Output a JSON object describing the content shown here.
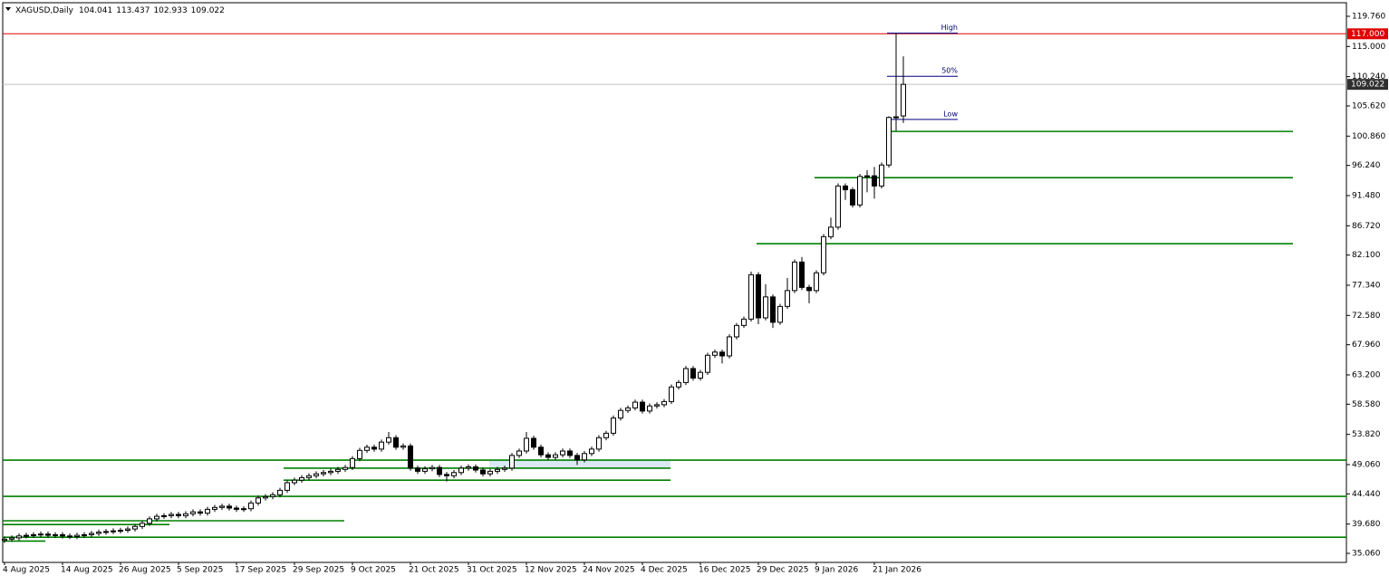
{
  "chart_data": {
    "type": "candlestick",
    "title": "XAGUSD,Daily",
    "categories": [
      "4 Aug 2025",
      null,
      null,
      null,
      null,
      null,
      null,
      null,
      "14 Aug 2025",
      null,
      null,
      null,
      null,
      null,
      null,
      null,
      "26 Aug 2025",
      null,
      null,
      null,
      null,
      null,
      null,
      null,
      "5 Sep 2025",
      null,
      null,
      null,
      null,
      null,
      null,
      null,
      "17 Sep 2025",
      null,
      null,
      null,
      null,
      null,
      null,
      null,
      "29 Sep 2025",
      null,
      null,
      null,
      null,
      null,
      null,
      null,
      "9 Oct 2025",
      null,
      null,
      null,
      null,
      null,
      null,
      null,
      "21 Oct 2025",
      null,
      null,
      null,
      null,
      null,
      null,
      null,
      "31 Oct 2025",
      null,
      null,
      null,
      null,
      null,
      null,
      null,
      "12 Nov 2025",
      null,
      null,
      null,
      null,
      null,
      null,
      null,
      "24 Nov 2025",
      null,
      null,
      null,
      null,
      null,
      null,
      null,
      "4 Dec 2025",
      null,
      null,
      null,
      null,
      null,
      null,
      null,
      "16 Dec 2025",
      null,
      null,
      null,
      null,
      null,
      null,
      null,
      "29 Dec 2025",
      null,
      null,
      null,
      null,
      null,
      null,
      null,
      "9 Jan 2026",
      null,
      null,
      null,
      null,
      null,
      null,
      null,
      "21 Jan 2026",
      null,
      null,
      null,
      null
    ],
    "open": [
      37.1,
      37.3,
      37.5,
      37.8,
      37.9,
      38.0,
      38.1,
      37.9,
      38.0,
      37.8,
      37.7,
      37.9,
      38.0,
      38.2,
      38.4,
      38.5,
      38.6,
      38.7,
      38.9,
      39.3,
      39.8,
      40.5,
      40.9,
      41.0,
      41.2,
      41.0,
      41.3,
      41.6,
      41.4,
      42.0,
      42.3,
      42.5,
      42.2,
      42.0,
      42.1,
      43.0,
      43.8,
      44.0,
      44.3,
      45.0,
      46.2,
      46.6,
      47.0,
      47.3,
      47.6,
      47.8,
      48.0,
      48.3,
      48.6,
      50.0,
      51.3,
      51.8,
      51.5,
      52.6,
      53.3,
      51.8,
      52.0,
      48.5,
      48.0,
      48.4,
      48.6,
      47.5,
      47.3,
      47.8,
      48.5,
      48.7,
      48.2,
      47.6,
      48.0,
      48.3,
      48.5,
      50.5,
      51.2,
      53.2,
      51.8,
      50.6,
      50.2,
      50.6,
      51.2,
      50.5,
      49.8,
      50.8,
      51.5,
      53.3,
      54.0,
      56.4,
      57.6,
      58.0,
      58.9,
      57.5,
      58.3,
      58.5,
      59.0,
      61.3,
      62.0,
      64.2,
      62.7,
      63.6,
      66.3,
      66.8,
      66.2,
      69.2,
      71.0,
      72.0,
      79.0,
      72.2,
      75.5,
      71.5,
      74.0,
      76.5,
      81.0,
      77.0,
      76.5,
      79.3,
      85.0,
      86.5,
      93.0,
      92.4,
      90.0,
      94.5,
      94.6,
      93.0,
      96.3,
      103.8,
      104.041
    ],
    "high": [
      37.7,
      37.9,
      38.2,
      38.3,
      38.4,
      38.5,
      38.5,
      38.4,
      38.4,
      38.2,
      38.3,
      38.4,
      38.6,
      38.8,
      38.9,
      39.0,
      39.1,
      39.3,
      39.7,
      40.2,
      40.9,
      41.3,
      41.4,
      41.6,
      41.6,
      41.7,
      42.0,
      42.0,
      42.4,
      42.7,
      42.9,
      42.9,
      42.6,
      42.5,
      43.4,
      44.2,
      44.4,
      44.7,
      45.4,
      46.6,
      47.0,
      47.4,
      47.7,
      48.0,
      48.2,
      48.4,
      48.7,
      49.0,
      50.4,
      51.7,
      52.2,
      52.2,
      53.0,
      54.2,
      53.7,
      52.4,
      52.4,
      48.9,
      48.8,
      49.0,
      49.0,
      47.9,
      48.2,
      48.9,
      49.1,
      49.1,
      48.6,
      48.4,
      48.7,
      48.9,
      50.9,
      51.6,
      54.2,
      53.6,
      52.2,
      51.0,
      51.0,
      51.6,
      51.6,
      50.9,
      51.2,
      51.9,
      53.7,
      54.4,
      56.8,
      58.0,
      58.4,
      59.3,
      59.3,
      58.7,
      58.9,
      59.4,
      61.7,
      62.4,
      64.6,
      64.6,
      64.0,
      66.7,
      67.2,
      67.2,
      69.6,
      71.4,
      72.4,
      79.5,
      79.4,
      77.5,
      75.9,
      74.4,
      78.5,
      81.4,
      81.8,
      77.4,
      79.7,
      85.4,
      88.0,
      93.4,
      93.4,
      92.8,
      94.9,
      95.5,
      96.0,
      96.7,
      104.0,
      117.1,
      113.437
    ],
    "low": [
      36.7,
      36.9,
      37.1,
      37.4,
      37.5,
      37.6,
      37.5,
      37.5,
      37.4,
      37.3,
      37.3,
      37.5,
      37.6,
      37.8,
      38.0,
      38.1,
      38.2,
      38.3,
      38.5,
      38.9,
      39.4,
      40.1,
      40.5,
      40.6,
      40.6,
      40.6,
      40.9,
      41.0,
      41.0,
      41.6,
      41.9,
      41.8,
      41.6,
      41.6,
      41.7,
      42.6,
      43.4,
      43.6,
      43.9,
      44.6,
      45.8,
      46.2,
      46.6,
      46.9,
      47.2,
      47.4,
      47.6,
      47.9,
      48.2,
      49.6,
      50.9,
      51.1,
      51.1,
      52.2,
      51.4,
      51.4,
      48.1,
      47.6,
      47.6,
      48.0,
      47.1,
      46.4,
      46.9,
      47.4,
      48.1,
      47.8,
      47.2,
      47.2,
      47.6,
      47.9,
      48.1,
      50.1,
      50.8,
      51.4,
      50.2,
      49.8,
      49.8,
      50.2,
      50.1,
      49.0,
      49.4,
      50.4,
      51.1,
      52.9,
      53.6,
      56.0,
      57.2,
      57.6,
      57.1,
      57.1,
      57.9,
      58.1,
      58.6,
      60.9,
      61.6,
      62.3,
      62.3,
      63.2,
      65.9,
      65.0,
      65.8,
      68.8,
      70.6,
      71.6,
      71.2,
      71.8,
      70.6,
      71.1,
      73.6,
      76.1,
      76.6,
      74.5,
      76.1,
      78.9,
      84.6,
      86.1,
      90.8,
      89.6,
      89.6,
      92.0,
      91.0,
      92.6,
      95.9,
      101.7,
      102.933
    ],
    "close": [
      37.3,
      37.5,
      37.8,
      37.9,
      38.0,
      38.1,
      37.9,
      38.0,
      37.8,
      37.7,
      37.9,
      38.0,
      38.2,
      38.4,
      38.5,
      38.6,
      38.7,
      38.9,
      39.3,
      39.8,
      40.5,
      40.9,
      41.0,
      41.2,
      41.0,
      41.3,
      41.6,
      41.4,
      42.0,
      42.3,
      42.5,
      42.2,
      42.0,
      42.1,
      43.0,
      43.8,
      44.0,
      44.3,
      45.0,
      46.2,
      46.6,
      47.0,
      47.3,
      47.6,
      47.8,
      48.0,
      48.3,
      48.6,
      50.0,
      51.3,
      51.8,
      51.5,
      52.6,
      53.3,
      51.8,
      52.0,
      48.5,
      48.0,
      48.4,
      48.6,
      47.5,
      47.3,
      47.8,
      48.5,
      48.7,
      48.2,
      47.6,
      48.0,
      48.3,
      48.5,
      50.5,
      51.2,
      53.2,
      51.8,
      50.6,
      50.2,
      50.6,
      51.2,
      50.5,
      49.8,
      50.8,
      51.5,
      53.3,
      54.0,
      56.4,
      57.6,
      58.0,
      58.9,
      57.5,
      58.3,
      58.5,
      59.0,
      61.3,
      62.0,
      64.2,
      62.7,
      63.6,
      66.3,
      66.8,
      66.2,
      69.2,
      71.0,
      72.0,
      79.0,
      72.2,
      75.5,
      71.5,
      74.0,
      76.5,
      81.0,
      77.0,
      76.5,
      79.3,
      85.0,
      86.5,
      93.0,
      92.4,
      90.0,
      94.5,
      94.6,
      93.0,
      96.3,
      103.8,
      103.9,
      109.022
    ],
    "up_color": "#ffffff",
    "down_color": "#000000",
    "ylim": [
      33.63,
      121.9
    ],
    "yticks": [
      {
        "value": 119.76,
        "label": "119.760"
      },
      {
        "value": 115,
        "label": "115.000"
      },
      {
        "value": 110.24,
        "label": "110.240"
      },
      {
        "value": 105.62,
        "label": "105.620"
      },
      {
        "value": 100.86,
        "label": "100.860"
      },
      {
        "value": 96.24,
        "label": "96.240"
      },
      {
        "value": 91.48,
        "label": "91.480"
      },
      {
        "value": 86.72,
        "label": "86.720"
      },
      {
        "value": 82.1,
        "label": "82.100"
      },
      {
        "value": 77.34,
        "label": "77.340"
      },
      {
        "value": 72.58,
        "label": "72.580"
      },
      {
        "value": 67.96,
        "label": "67.960"
      },
      {
        "value": 63.2,
        "label": "63.200"
      },
      {
        "value": 58.58,
        "label": "58.580"
      },
      {
        "value": 53.82,
        "label": "53.820"
      },
      {
        "value": 49.06,
        "label": "49.060"
      },
      {
        "value": 44.44,
        "label": "44.440"
      },
      {
        "value": 39.68,
        "label": "39.680"
      },
      {
        "value": 35.06,
        "label": "35.060"
      }
    ],
    "alert_level": {
      "value": 117,
      "label": "117.000",
      "color": "#e00000"
    },
    "levels_color": "#008000",
    "levels": [
      101.6,
      94.3,
      83.9,
      49.76,
      44.05,
      37.6,
      48.5,
      46.6,
      40.2,
      39.6,
      37.0
    ],
    "fibo": {
      "color": "#000080",
      "levels": [
        {
          "name": "High",
          "value": 117.1
        },
        {
          "name": "50%",
          "value": 110.3
        },
        {
          "name": "Low",
          "value": 103.5
        }
      ]
    }
  }
}
